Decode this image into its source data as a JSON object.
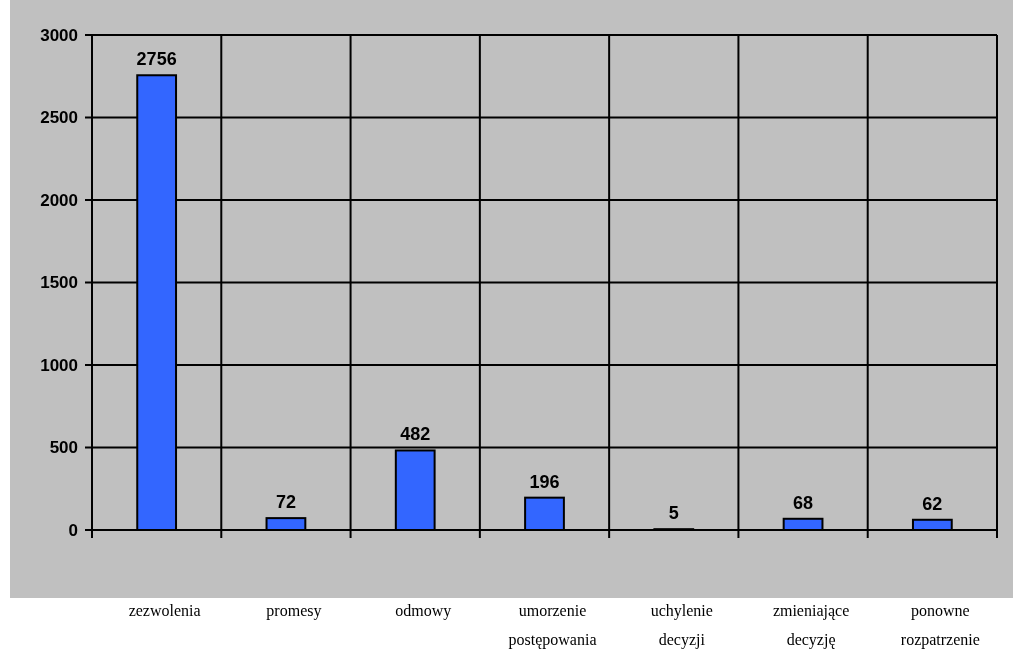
{
  "chart_data": {
    "type": "bar",
    "categories": [
      "zezwolenia",
      "promesy",
      "odmowy",
      "umorzenie\npostępowania",
      "uchylenie\ndecyzji",
      "zmieniające\ndecyzję",
      "ponowne\nrozpatrzenie"
    ],
    "values": [
      2756,
      72,
      482,
      196,
      5,
      68,
      62
    ],
    "color": "#3366ff",
    "ylim": [
      0,
      3000
    ],
    "yticks": [
      0,
      500,
      1000,
      1500,
      2000,
      2500,
      3000
    ],
    "grid": true,
    "data_labels": true
  }
}
